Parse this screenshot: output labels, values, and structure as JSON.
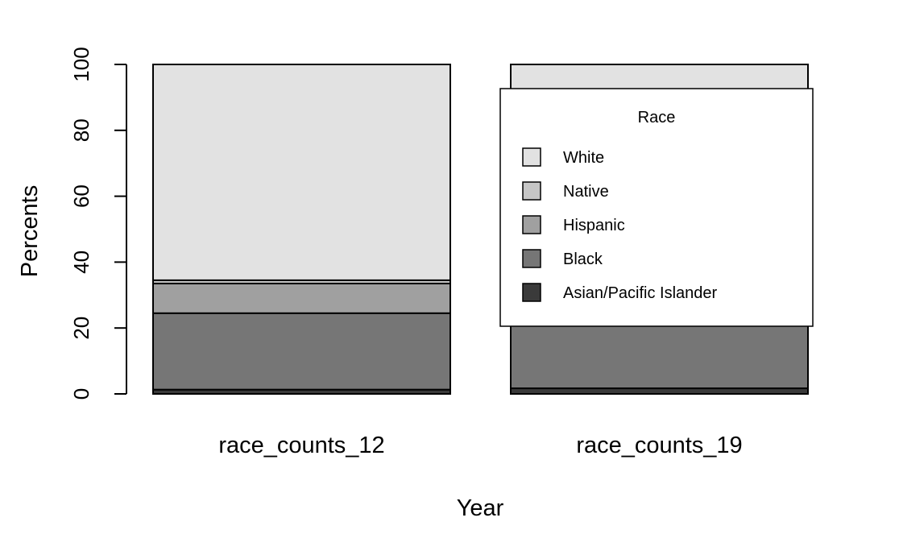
{
  "chart_data": {
    "type": "bar",
    "stacked": true,
    "xlabel": "Year",
    "ylabel": "Percents",
    "ylim": [
      0,
      100
    ],
    "yticks": [
      0,
      20,
      40,
      60,
      80,
      100
    ],
    "categories": [
      "race_counts_12",
      "race_counts_19"
    ],
    "series": [
      {
        "name": "Asian/Pacific Islander",
        "values": [
          1.3,
          1.7
        ],
        "color": "#3a3a3a"
      },
      {
        "name": "Black",
        "values": [
          23.2,
          23.0
        ],
        "color": "#767676"
      },
      {
        "name": "Hispanic",
        "values": [
          9.0,
          10.3
        ],
        "color": "#a0a0a0"
      },
      {
        "name": "Native",
        "values": [
          1.0,
          1.0
        ],
        "color": "#c6c6c6"
      },
      {
        "name": "White",
        "values": [
          65.5,
          64.0
        ],
        "color": "#e2e2e2"
      }
    ],
    "legend": {
      "title": "Race",
      "position": "top-right",
      "entries": [
        "White",
        "Native",
        "Hispanic",
        "Black",
        "Asian/Pacific Islander"
      ]
    },
    "grid": false
  }
}
